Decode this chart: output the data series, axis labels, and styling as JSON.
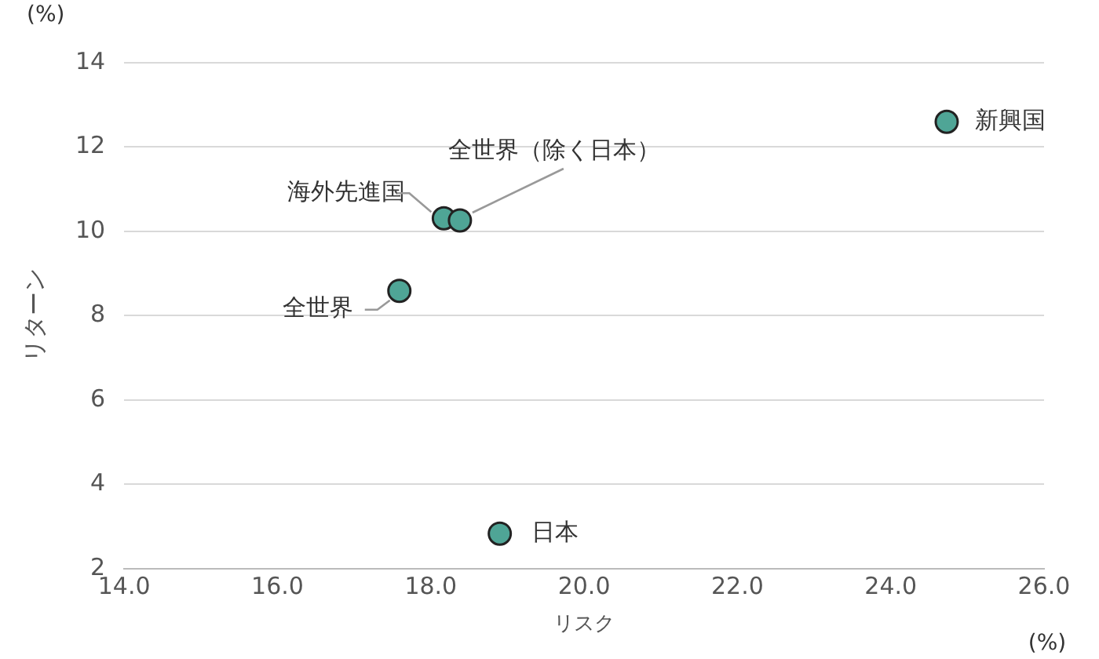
{
  "chart_data": {
    "type": "scatter",
    "xlabel": "リスク",
    "ylabel": "リターン",
    "x": [
      24.73,
      18.17,
      18.38,
      17.59,
      18.9
    ],
    "values": [
      12.6,
      10.31,
      10.26,
      8.59,
      2.83
    ],
    "color": "#4fa596",
    "marker": "circle",
    "grid": "y",
    "legend": false,
    "xlim": [
      14,
      26
    ],
    "xticks": [
      {
        "value": 14,
        "label": "14.0"
      },
      {
        "value": 16,
        "label": "16.0"
      },
      {
        "value": 18,
        "label": "18.0"
      },
      {
        "value": 20,
        "label": "20.0"
      },
      {
        "value": 22,
        "label": "22.0"
      },
      {
        "value": 24,
        "label": "24.0"
      },
      {
        "value": 26,
        "label": "26.0"
      }
    ],
    "ylim": [
      2,
      14
    ],
    "yticks": [
      2,
      4,
      6,
      8,
      10,
      12,
      14
    ],
    "annotations": [
      "(%)",
      "(%)",
      {
        "text": "新興国",
        "x": 24.73,
        "y": 12.6
      },
      {
        "text": "海外先進国",
        "x": 18.17,
        "y": 10.31
      },
      {
        "text": "全世界（除く日本）",
        "x": 18.38,
        "y": 10.26
      },
      {
        "text": "全世界",
        "x": 17.59,
        "y": 8.59
      },
      {
        "text": "日本",
        "x": 18.9,
        "y": 2.83
      }
    ]
  }
}
